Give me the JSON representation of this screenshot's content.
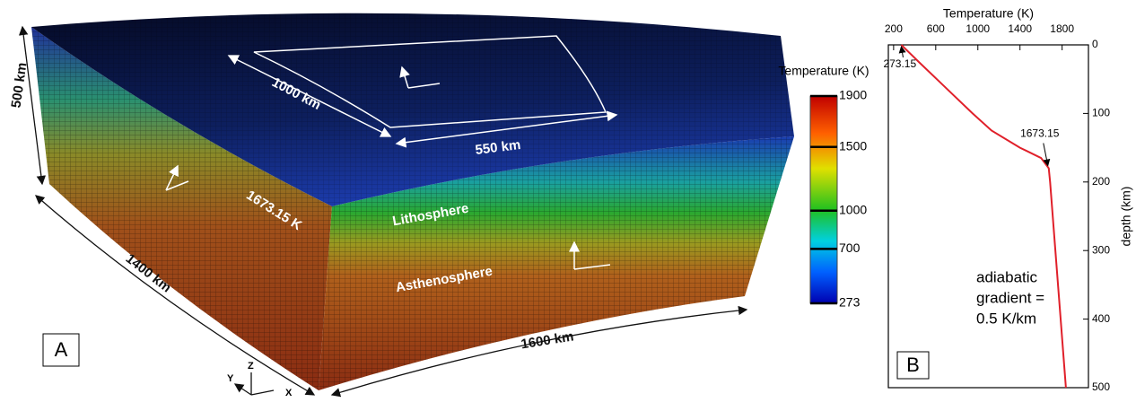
{
  "panel_a": {
    "label": "A",
    "dimensions": [
      "500 km",
      "1000 km",
      "550 km",
      "1400 km",
      "1600 km"
    ],
    "annotations": [
      "1673.15 K",
      "Lithosphere",
      "Asthenosphere"
    ],
    "axes": [
      "X",
      "Y",
      "Z"
    ]
  },
  "chart_data": [
    {
      "type": "colorbar",
      "title": "Temperature (K)",
      "clim": [
        273,
        1900
      ],
      "ticks": [
        273,
        700,
        1000,
        1500,
        1900
      ]
    },
    {
      "type": "line",
      "label": "B",
      "xlabel": "Temperature (K)",
      "ylabel": "depth (km)",
      "xlim": [
        150,
        2050
      ],
      "xticks": [
        200,
        600,
        1000,
        1400,
        1800
      ],
      "ylim": [
        0,
        500
      ],
      "yticks": [
        0,
        100,
        200,
        300,
        400,
        500
      ],
      "y_inverted": true,
      "series": [
        {
          "color": "#e0202a",
          "x": [
            273.15,
            440,
            610,
            780,
            950,
            1130,
            1400,
            1600,
            1673.15,
            1686,
            1736,
            1786,
            1836
          ],
          "y": [
            0,
            25,
            50,
            75,
            100,
            125,
            150,
            165,
            180,
            200,
            300,
            400,
            500
          ]
        }
      ],
      "annotations": [
        "273.15",
        "1673.15"
      ],
      "note": [
        "adiabatic",
        "gradient =",
        "0.5 K/km"
      ]
    }
  ]
}
